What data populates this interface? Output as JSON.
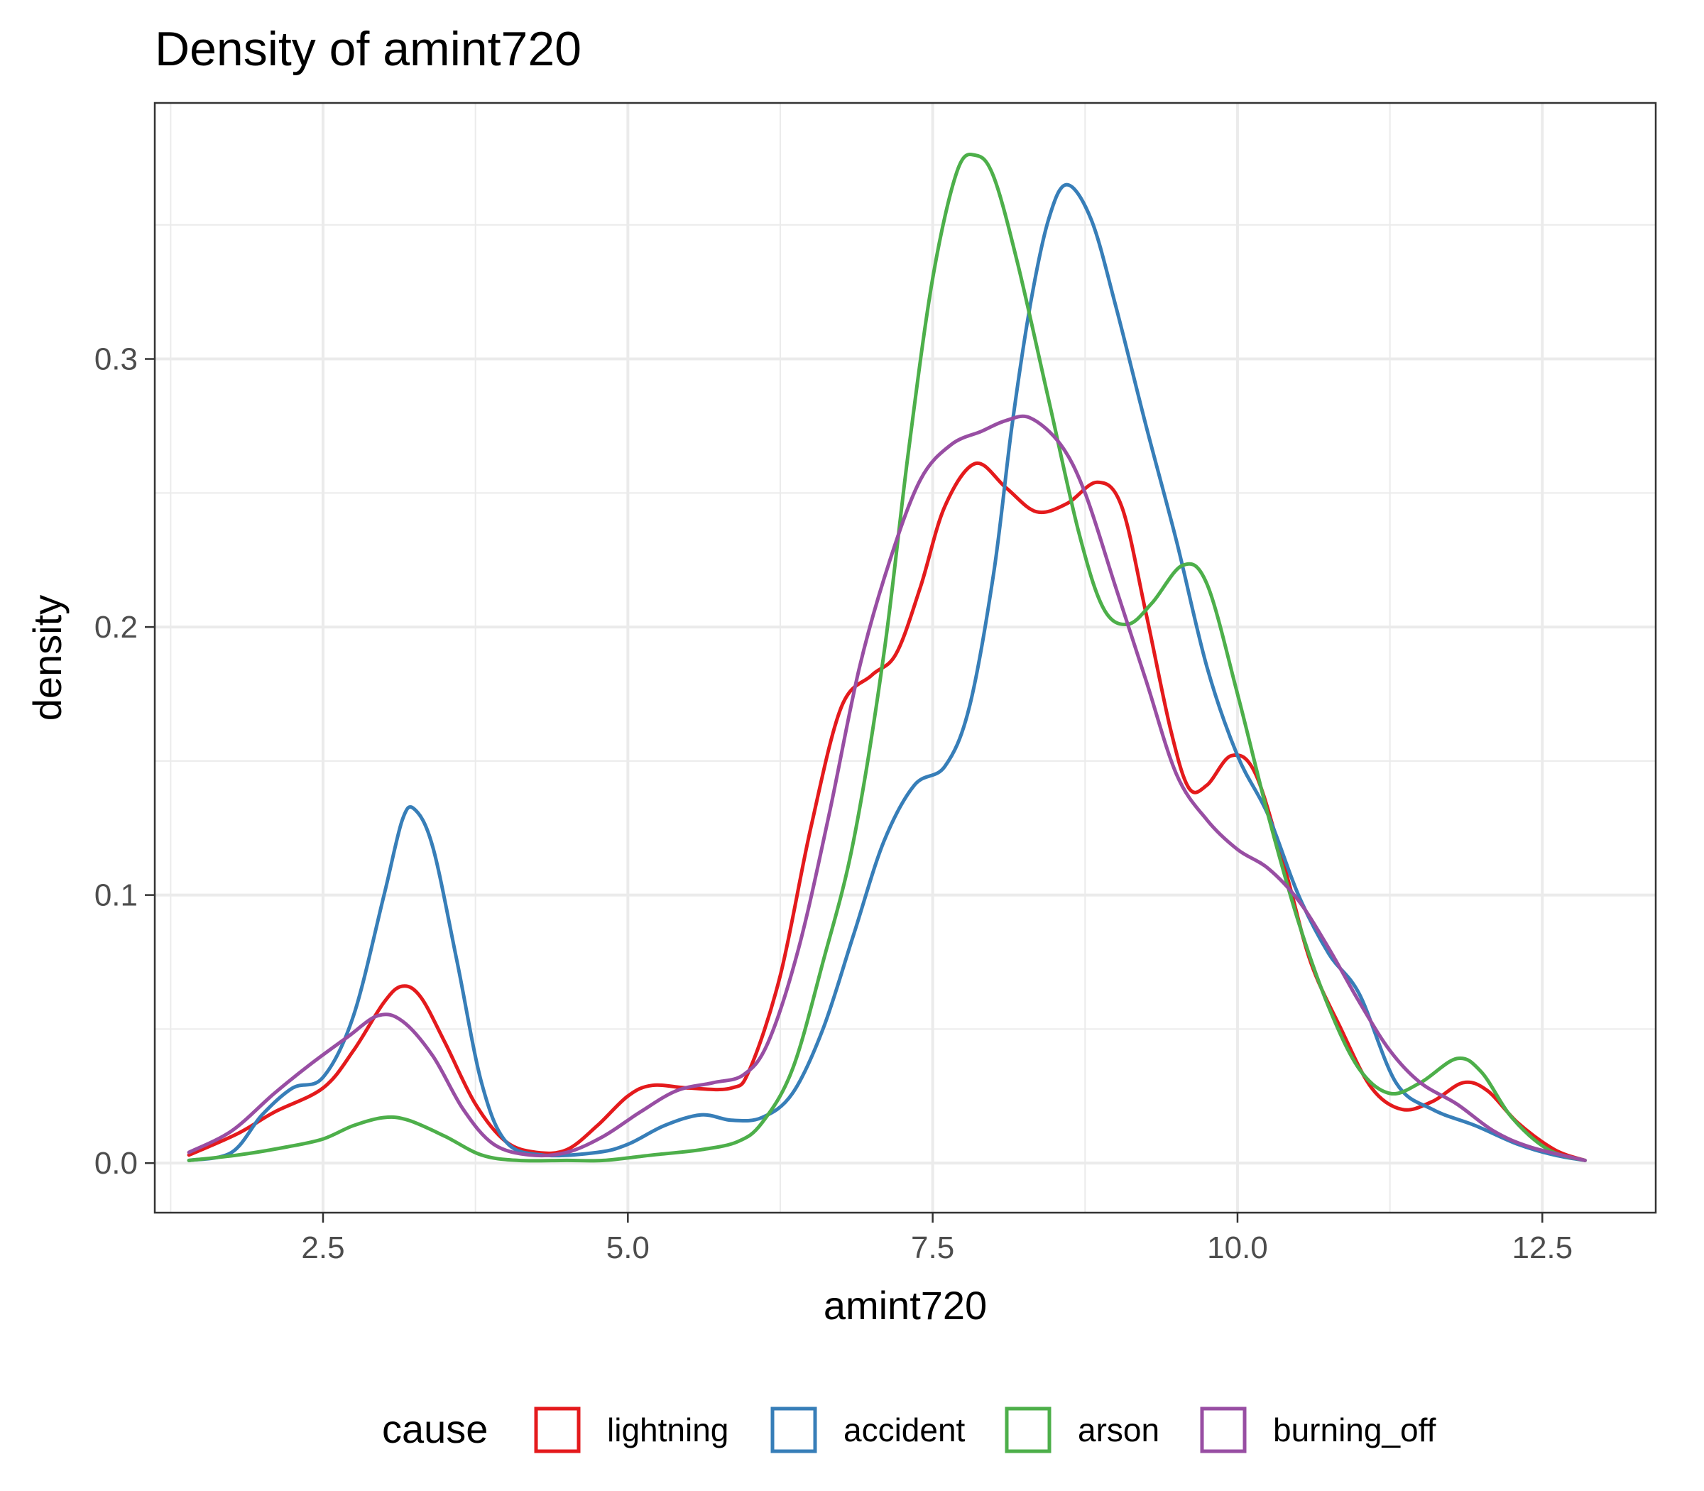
{
  "chart_data": {
    "type": "line",
    "title": "Density of amint720",
    "xlabel": "amint720",
    "ylabel": "density",
    "xlim": [
      1.12,
      13.43
    ],
    "ylim": [
      -0.0185,
      0.3955
    ],
    "x_ticks": [
      2.5,
      5.0,
      7.5,
      10.0,
      12.5
    ],
    "x_tick_labels": [
      "2.5",
      "5.0",
      "7.5",
      "10.0",
      "12.5"
    ],
    "y_ticks": [
      0.0,
      0.1,
      0.2,
      0.3
    ],
    "y_tick_labels": [
      "0.0",
      "0.1",
      "0.2",
      "0.3"
    ],
    "grid": true,
    "legend": {
      "title": "cause",
      "position": "bottom"
    },
    "series": [
      {
        "name": "lightning",
        "color": "#e41a1c",
        "points": [
          [
            1.4,
            0.003
          ],
          [
            1.8,
            0.011
          ],
          [
            2.1,
            0.019
          ],
          [
            2.5,
            0.028
          ],
          [
            2.75,
            0.042
          ],
          [
            3.0,
            0.06
          ],
          [
            3.15,
            0.066
          ],
          [
            3.3,
            0.062
          ],
          [
            3.5,
            0.045
          ],
          [
            3.75,
            0.022
          ],
          [
            4.0,
            0.008
          ],
          [
            4.25,
            0.004
          ],
          [
            4.5,
            0.005
          ],
          [
            4.75,
            0.014
          ],
          [
            5.0,
            0.025
          ],
          [
            5.2,
            0.029
          ],
          [
            5.5,
            0.028
          ],
          [
            5.85,
            0.028
          ],
          [
            6.0,
            0.035
          ],
          [
            6.25,
            0.07
          ],
          [
            6.5,
            0.125
          ],
          [
            6.75,
            0.17
          ],
          [
            7.0,
            0.182
          ],
          [
            7.2,
            0.19
          ],
          [
            7.4,
            0.215
          ],
          [
            7.6,
            0.245
          ],
          [
            7.85,
            0.261
          ],
          [
            8.1,
            0.252
          ],
          [
            8.35,
            0.243
          ],
          [
            8.6,
            0.246
          ],
          [
            8.85,
            0.254
          ],
          [
            9.05,
            0.245
          ],
          [
            9.25,
            0.205
          ],
          [
            9.45,
            0.162
          ],
          [
            9.6,
            0.14
          ],
          [
            9.75,
            0.141
          ],
          [
            9.95,
            0.152
          ],
          [
            10.15,
            0.145
          ],
          [
            10.4,
            0.108
          ],
          [
            10.6,
            0.075
          ],
          [
            10.85,
            0.05
          ],
          [
            11.1,
            0.028
          ],
          [
            11.35,
            0.02
          ],
          [
            11.6,
            0.023
          ],
          [
            11.85,
            0.03
          ],
          [
            12.05,
            0.027
          ],
          [
            12.3,
            0.015
          ],
          [
            12.6,
            0.005
          ],
          [
            12.85,
            0.001
          ]
        ]
      },
      {
        "name": "accident",
        "color": "#377eb8",
        "points": [
          [
            1.4,
            0.001
          ],
          [
            1.75,
            0.004
          ],
          [
            2.0,
            0.018
          ],
          [
            2.25,
            0.028
          ],
          [
            2.5,
            0.032
          ],
          [
            2.75,
            0.055
          ],
          [
            3.0,
            0.1
          ],
          [
            3.15,
            0.128
          ],
          [
            3.25,
            0.132
          ],
          [
            3.4,
            0.118
          ],
          [
            3.6,
            0.075
          ],
          [
            3.8,
            0.03
          ],
          [
            4.0,
            0.008
          ],
          [
            4.3,
            0.003
          ],
          [
            4.75,
            0.004
          ],
          [
            5.0,
            0.007
          ],
          [
            5.3,
            0.014
          ],
          [
            5.6,
            0.018
          ],
          [
            5.85,
            0.016
          ],
          [
            6.1,
            0.017
          ],
          [
            6.35,
            0.026
          ],
          [
            6.6,
            0.05
          ],
          [
            6.85,
            0.085
          ],
          [
            7.1,
            0.12
          ],
          [
            7.35,
            0.141
          ],
          [
            7.6,
            0.148
          ],
          [
            7.8,
            0.17
          ],
          [
            8.0,
            0.22
          ],
          [
            8.15,
            0.275
          ],
          [
            8.3,
            0.32
          ],
          [
            8.45,
            0.352
          ],
          [
            8.6,
            0.365
          ],
          [
            8.8,
            0.352
          ],
          [
            9.0,
            0.32
          ],
          [
            9.25,
            0.275
          ],
          [
            9.5,
            0.232
          ],
          [
            9.75,
            0.185
          ],
          [
            10.0,
            0.152
          ],
          [
            10.25,
            0.13
          ],
          [
            10.5,
            0.1
          ],
          [
            10.75,
            0.078
          ],
          [
            11.0,
            0.063
          ],
          [
            11.3,
            0.03
          ],
          [
            11.6,
            0.02
          ],
          [
            11.95,
            0.014
          ],
          [
            12.3,
            0.007
          ],
          [
            12.6,
            0.003
          ],
          [
            12.85,
            0.001
          ]
        ]
      },
      {
        "name": "arson",
        "color": "#4daf4a",
        "points": [
          [
            1.4,
            0.001
          ],
          [
            1.8,
            0.003
          ],
          [
            2.2,
            0.006
          ],
          [
            2.5,
            0.009
          ],
          [
            2.75,
            0.014
          ],
          [
            3.0,
            0.017
          ],
          [
            3.2,
            0.016
          ],
          [
            3.5,
            0.01
          ],
          [
            3.8,
            0.003
          ],
          [
            4.1,
            0.001
          ],
          [
            4.5,
            0.001
          ],
          [
            4.8,
            0.001
          ],
          [
            5.2,
            0.003
          ],
          [
            5.6,
            0.005
          ],
          [
            5.9,
            0.008
          ],
          [
            6.1,
            0.015
          ],
          [
            6.35,
            0.035
          ],
          [
            6.6,
            0.075
          ],
          [
            6.85,
            0.12
          ],
          [
            7.1,
            0.19
          ],
          [
            7.3,
            0.265
          ],
          [
            7.5,
            0.33
          ],
          [
            7.7,
            0.37
          ],
          [
            7.85,
            0.376
          ],
          [
            8.0,
            0.368
          ],
          [
            8.2,
            0.335
          ],
          [
            8.45,
            0.285
          ],
          [
            8.7,
            0.235
          ],
          [
            8.9,
            0.207
          ],
          [
            9.1,
            0.201
          ],
          [
            9.3,
            0.209
          ],
          [
            9.55,
            0.223
          ],
          [
            9.75,
            0.216
          ],
          [
            10.0,
            0.175
          ],
          [
            10.25,
            0.13
          ],
          [
            10.5,
            0.09
          ],
          [
            10.75,
            0.058
          ],
          [
            11.0,
            0.035
          ],
          [
            11.25,
            0.026
          ],
          [
            11.5,
            0.03
          ],
          [
            11.8,
            0.039
          ],
          [
            12.0,
            0.034
          ],
          [
            12.25,
            0.017
          ],
          [
            12.55,
            0.005
          ],
          [
            12.85,
            0.001
          ]
        ]
      },
      {
        "name": "burning_off",
        "color": "#984ea3",
        "points": [
          [
            1.4,
            0.004
          ],
          [
            1.75,
            0.012
          ],
          [
            2.1,
            0.026
          ],
          [
            2.4,
            0.037
          ],
          [
            2.7,
            0.047
          ],
          [
            2.95,
            0.055
          ],
          [
            3.15,
            0.053
          ],
          [
            3.4,
            0.04
          ],
          [
            3.65,
            0.02
          ],
          [
            3.9,
            0.007
          ],
          [
            4.2,
            0.003
          ],
          [
            4.5,
            0.004
          ],
          [
            4.8,
            0.01
          ],
          [
            5.1,
            0.019
          ],
          [
            5.4,
            0.027
          ],
          [
            5.7,
            0.03
          ],
          [
            5.95,
            0.033
          ],
          [
            6.15,
            0.045
          ],
          [
            6.4,
            0.08
          ],
          [
            6.65,
            0.13
          ],
          [
            6.9,
            0.185
          ],
          [
            7.15,
            0.225
          ],
          [
            7.4,
            0.255
          ],
          [
            7.65,
            0.268
          ],
          [
            7.9,
            0.273
          ],
          [
            8.1,
            0.277
          ],
          [
            8.3,
            0.278
          ],
          [
            8.55,
            0.268
          ],
          [
            8.75,
            0.25
          ],
          [
            9.0,
            0.215
          ],
          [
            9.25,
            0.18
          ],
          [
            9.5,
            0.145
          ],
          [
            9.75,
            0.128
          ],
          [
            10.0,
            0.117
          ],
          [
            10.25,
            0.11
          ],
          [
            10.5,
            0.098
          ],
          [
            10.75,
            0.08
          ],
          [
            11.0,
            0.06
          ],
          [
            11.25,
            0.042
          ],
          [
            11.5,
            0.03
          ],
          [
            11.8,
            0.022
          ],
          [
            12.1,
            0.012
          ],
          [
            12.4,
            0.006
          ],
          [
            12.85,
            0.001
          ]
        ]
      }
    ]
  }
}
